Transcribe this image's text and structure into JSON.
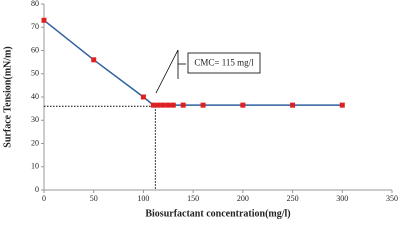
{
  "chart_data": {
    "type": "line",
    "x_label": "Biosurfactant concentration(mg/l)",
    "y_label": "Surface Tension(mN/m)",
    "annotation": "CMC= 115 mg/l",
    "reference_x": 112,
    "reference_y": 36,
    "series": [
      {
        "color": "#2f5f9e",
        "marker_color": "#e02020",
        "x": [
          0,
          50,
          100,
          110,
          115,
          120,
          125,
          130,
          140,
          160,
          200,
          250,
          300
        ],
        "values": [
          73,
          56,
          40,
          36.5,
          36.5,
          36.5,
          36.5,
          36.5,
          36.5,
          36.5,
          36.5,
          36.5,
          36.5
        ]
      }
    ],
    "xlim": [
      0,
      350
    ],
    "xticks": [
      0,
      50,
      100,
      150,
      200,
      250,
      300,
      350
    ],
    "ylim": [
      0,
      80
    ],
    "yticks": [
      0,
      10,
      20,
      30,
      40,
      50,
      60,
      70,
      80
    ],
    "grid": false
  }
}
